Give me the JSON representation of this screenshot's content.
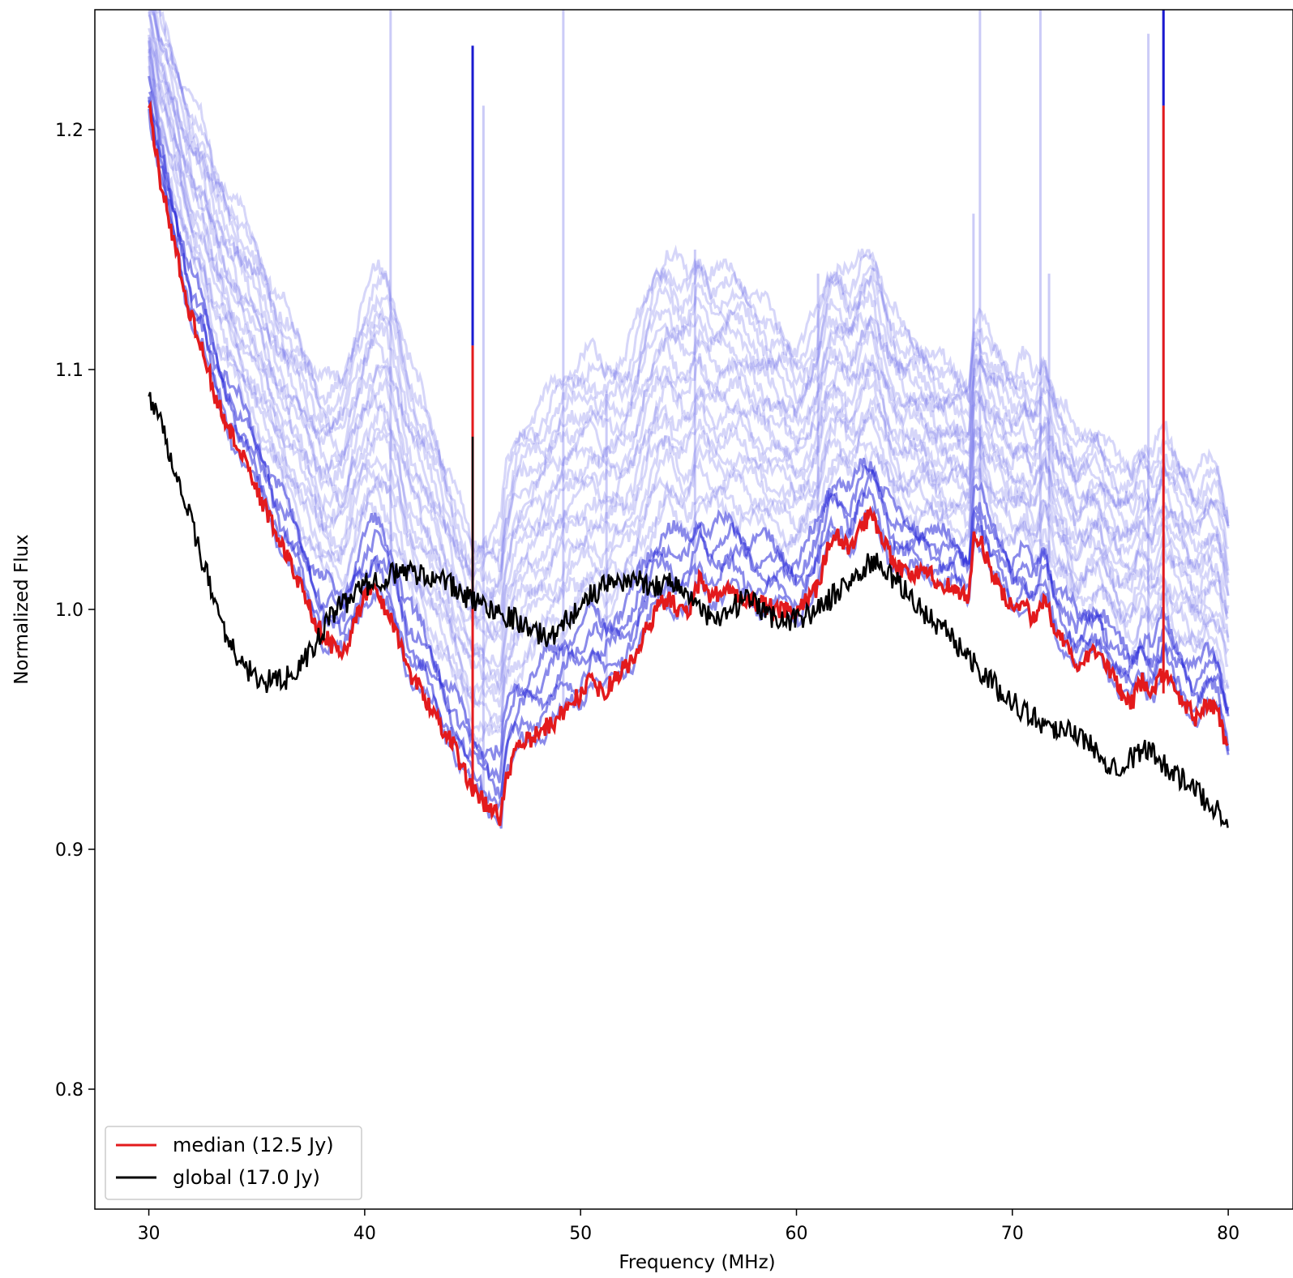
{
  "chart_data": {
    "type": "line",
    "title": "",
    "xlabel": "Frequency (MHz)",
    "ylabel": "Normalized Flux",
    "xlim": [
      27.5,
      83.0
    ],
    "ylim": [
      0.75,
      1.25
    ],
    "x_ticks": [
      "30",
      "40",
      "50",
      "60",
      "70",
      "80"
    ],
    "x_tick_values": [
      30,
      40,
      50,
      60,
      70,
      80
    ],
    "y_ticks": [
      "0.8",
      "0.9",
      "1.0",
      "1.1",
      "1.2"
    ],
    "y_tick_values": [
      0.8,
      0.9,
      1.0,
      1.1,
      1.2
    ],
    "grid": false,
    "legend_position": "lower-left",
    "colors": {
      "median": "#e31a1c",
      "global": "#000000",
      "individual": "#3b3be0"
    },
    "series": [
      {
        "name": "median (12.5 Jy)",
        "color": "#e31a1c",
        "x": [
          30,
          30.5,
          31,
          31.5,
          32,
          32.5,
          33,
          33.5,
          34,
          35,
          36,
          37,
          37.5,
          38,
          38.5,
          39,
          39.5,
          40,
          40.5,
          41,
          41.5,
          42,
          43,
          44,
          44.5,
          45,
          45.5,
          46,
          46.3,
          46.5,
          47,
          47.5,
          48,
          49,
          50,
          50.5,
          51,
          51.5,
          52,
          52.5,
          53,
          53.5,
          54,
          54.5,
          55,
          55.5,
          56,
          57,
          58,
          59,
          60,
          61,
          61.5,
          62,
          62.5,
          63,
          63.5,
          64,
          64.5,
          65,
          66,
          67,
          68,
          68.2,
          68.5,
          69,
          70,
          70.5,
          71,
          71.5,
          72,
          72.5,
          73,
          73.5,
          74,
          74.5,
          75,
          75.5,
          76,
          76.5,
          77,
          77.5,
          78,
          78.5,
          79,
          79.5,
          80
        ],
        "values": [
          1.21,
          1.18,
          1.16,
          1.14,
          1.12,
          1.11,
          1.09,
          1.08,
          1.07,
          1.05,
          1.03,
          1.01,
          1.0,
          0.99,
          0.985,
          0.98,
          0.995,
          1.005,
          1.008,
          1.0,
          0.99,
          0.975,
          0.96,
          0.945,
          0.935,
          0.925,
          0.92,
          0.915,
          0.913,
          0.93,
          0.94,
          0.945,
          0.948,
          0.955,
          0.965,
          0.97,
          0.965,
          0.97,
          0.975,
          0.98,
          0.99,
          1.0,
          1.005,
          1.0,
          0.998,
          1.012,
          1.006,
          1.008,
          1.003,
          1.0,
          0.998,
          1.01,
          1.028,
          1.03,
          1.025,
          1.035,
          1.04,
          1.03,
          1.02,
          1.015,
          1.015,
          1.01,
          1.005,
          1.03,
          1.03,
          1.015,
          1.0,
          1.005,
          0.995,
          1.005,
          0.99,
          0.985,
          0.975,
          0.98,
          0.985,
          0.975,
          0.965,
          0.96,
          0.97,
          0.965,
          0.975,
          0.965,
          0.96,
          0.955,
          0.96,
          0.958,
          0.94
        ]
      },
      {
        "name": "global (17.0 Jy)",
        "color": "#000000",
        "x": [
          30,
          30.5,
          31,
          31.5,
          32,
          32.5,
          33,
          33.5,
          34,
          34.5,
          35,
          35.5,
          36,
          36.5,
          37,
          37.5,
          38,
          38.5,
          39,
          39.5,
          40,
          40.5,
          41,
          41.5,
          42,
          42.5,
          43,
          43.5,
          44,
          44.5,
          45,
          45.5,
          46,
          46.5,
          47,
          47.5,
          48,
          48.5,
          49,
          49.5,
          50,
          50.5,
          51,
          51.5,
          52,
          52.5,
          53,
          53.5,
          54,
          54.5,
          55,
          55.5,
          56,
          56.5,
          57,
          57.5,
          58,
          58.5,
          59,
          59.5,
          60,
          60.5,
          61,
          61.5,
          62,
          62.5,
          63,
          63.5,
          64,
          64.5,
          65,
          65.5,
          66,
          66.5,
          67,
          67.5,
          68,
          68.5,
          69,
          69.5,
          70,
          70.5,
          71,
          71.5,
          72,
          72.5,
          73,
          73.5,
          74,
          74.5,
          75,
          75.5,
          76,
          76.5,
          77,
          77.5,
          78,
          78.5,
          79,
          79.5,
          80
        ],
        "values": [
          1.09,
          1.08,
          1.065,
          1.05,
          1.035,
          1.02,
          1.005,
          0.992,
          0.982,
          0.975,
          0.972,
          0.97,
          0.97,
          0.972,
          0.976,
          0.982,
          0.99,
          0.998,
          1.002,
          1.006,
          1.01,
          1.012,
          1.014,
          1.015,
          1.016,
          1.015,
          1.014,
          1.012,
          1.01,
          1.006,
          1.004,
          1.002,
          1.0,
          0.998,
          0.996,
          0.993,
          0.99,
          0.988,
          0.992,
          0.997,
          1.002,
          1.006,
          1.009,
          1.011,
          1.012,
          1.012,
          1.011,
          1.01,
          1.012,
          1.01,
          1.006,
          1.0,
          0.996,
          0.995,
          1.0,
          1.004,
          1.002,
          0.998,
          0.997,
          0.996,
          0.996,
          0.998,
          1.0,
          1.004,
          1.008,
          1.012,
          1.016,
          1.02,
          1.018,
          1.012,
          1.008,
          1.003,
          0.998,
          0.994,
          0.99,
          0.985,
          0.98,
          0.975,
          0.97,
          0.965,
          0.962,
          0.958,
          0.955,
          0.952,
          0.95,
          0.952,
          0.948,
          0.944,
          0.94,
          0.936,
          0.935,
          0.938,
          0.942,
          0.94,
          0.936,
          0.932,
          0.928,
          0.924,
          0.92,
          0.917,
          0.912
        ]
      }
    ],
    "annotations": []
  },
  "legend": {
    "entries": [
      {
        "label": "median (12.5 Jy)",
        "color": "#e31a1c"
      },
      {
        "label": "global (17.0 Jy)",
        "color": "#000000"
      }
    ]
  }
}
